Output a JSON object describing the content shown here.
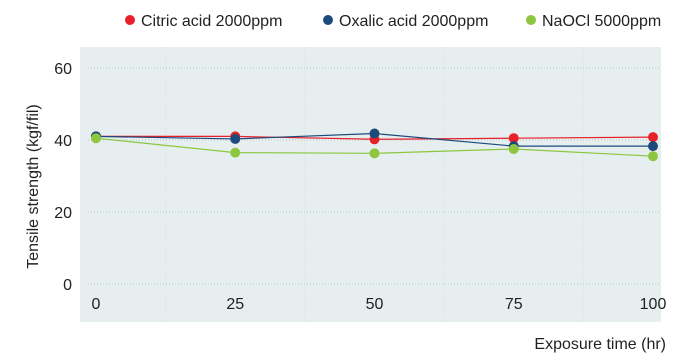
{
  "chart_data": {
    "type": "line",
    "xlabel": "Exposure time (hr)",
    "ylabel": "Tensile strength (kgf/fil)",
    "x": [
      0,
      25,
      50,
      75,
      100
    ],
    "xlim": [
      0,
      100
    ],
    "ylim": [
      0,
      60
    ],
    "xticks": [
      0,
      25,
      50,
      75,
      100
    ],
    "yticks": [
      0,
      20,
      40,
      60
    ],
    "grid": true,
    "legend_position": "top",
    "series": [
      {
        "name": "Citric acid 2000ppm",
        "color": "#e8202a",
        "values": [
          41.0,
          41.0,
          40.2,
          40.5,
          40.8
        ]
      },
      {
        "name": "Oxalic acid 2000ppm",
        "color": "#1c4a7a",
        "values": [
          41.0,
          40.3,
          41.8,
          38.3,
          38.3
        ]
      },
      {
        "name": "NaOCl 5000ppm",
        "color": "#8dc63f",
        "values": [
          40.5,
          36.5,
          36.3,
          37.5,
          35.5
        ]
      }
    ],
    "plot_background": "#e6eef0"
  }
}
